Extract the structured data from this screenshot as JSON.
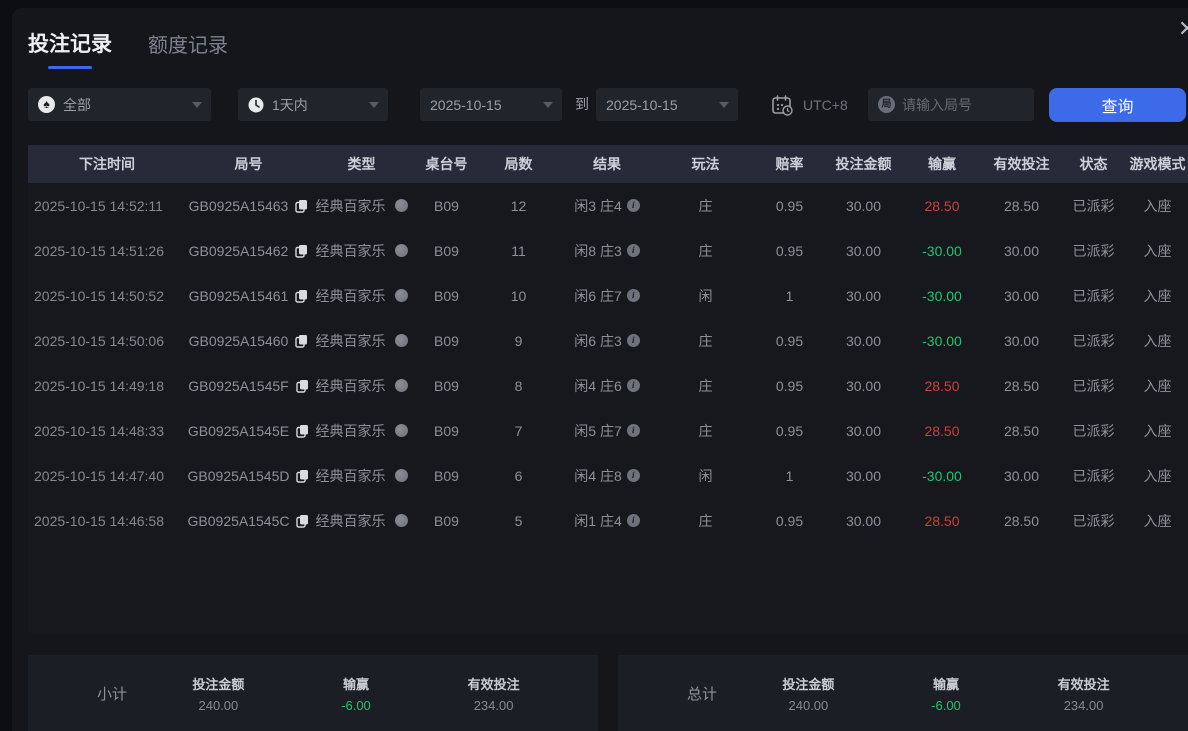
{
  "window": {
    "close_icon": "✕"
  },
  "tabs": [
    {
      "label": "投注记录",
      "active": true
    },
    {
      "label": "额度记录",
      "active": false
    }
  ],
  "filters": {
    "game_type": {
      "value": "全部",
      "icon": "spade-icon",
      "icon_char": "♠"
    },
    "time_range": {
      "value": "1天内",
      "icon": "clock-icon"
    },
    "date_from": "2025-10-15",
    "to_label": "到",
    "date_to": "2025-10-15",
    "timezone": "UTC+8",
    "round_placeholder": "请输入局号",
    "round_icon_char": "局",
    "query_button": "查询"
  },
  "table": {
    "columns": [
      "下注时间",
      "局号",
      "类型",
      "桌台号",
      "局数",
      "结果",
      "玩法",
      "赔率",
      "投注金额",
      "输赢",
      "有效投注",
      "状态",
      "游戏模式"
    ],
    "rows": [
      {
        "time": "2025-10-15 14:52:11",
        "round_id": "GB0925A15463",
        "type": "经典百家乐",
        "table_no": "B09",
        "round": "12",
        "result": "闲3 庄4",
        "play": "庄",
        "odds": "0.95",
        "bet": "30.00",
        "win": "28.50",
        "valid": "28.50",
        "status": "已派彩",
        "mode": "入座"
      },
      {
        "time": "2025-10-15 14:51:26",
        "round_id": "GB0925A15462",
        "type": "经典百家乐",
        "table_no": "B09",
        "round": "11",
        "result": "闲8 庄3",
        "play": "庄",
        "odds": "0.95",
        "bet": "30.00",
        "win": "-30.00",
        "valid": "30.00",
        "status": "已派彩",
        "mode": "入座"
      },
      {
        "time": "2025-10-15 14:50:52",
        "round_id": "GB0925A15461",
        "type": "经典百家乐",
        "table_no": "B09",
        "round": "10",
        "result": "闲6 庄7",
        "play": "闲",
        "odds": "1",
        "bet": "30.00",
        "win": "-30.00",
        "valid": "30.00",
        "status": "已派彩",
        "mode": "入座"
      },
      {
        "time": "2025-10-15 14:50:06",
        "round_id": "GB0925A15460",
        "type": "经典百家乐",
        "table_no": "B09",
        "round": "9",
        "result": "闲6 庄3",
        "play": "庄",
        "odds": "0.95",
        "bet": "30.00",
        "win": "-30.00",
        "valid": "30.00",
        "status": "已派彩",
        "mode": "入座"
      },
      {
        "time": "2025-10-15 14:49:18",
        "round_id": "GB0925A1545F",
        "type": "经典百家乐",
        "table_no": "B09",
        "round": "8",
        "result": "闲4 庄6",
        "play": "庄",
        "odds": "0.95",
        "bet": "30.00",
        "win": "28.50",
        "valid": "28.50",
        "status": "已派彩",
        "mode": "入座"
      },
      {
        "time": "2025-10-15 14:48:33",
        "round_id": "GB0925A1545E",
        "type": "经典百家乐",
        "table_no": "B09",
        "round": "7",
        "result": "闲5 庄7",
        "play": "庄",
        "odds": "0.95",
        "bet": "30.00",
        "win": "28.50",
        "valid": "28.50",
        "status": "已派彩",
        "mode": "入座"
      },
      {
        "time": "2025-10-15 14:47:40",
        "round_id": "GB0925A1545D",
        "type": "经典百家乐",
        "table_no": "B09",
        "round": "6",
        "result": "闲4 庄8",
        "play": "闲",
        "odds": "1",
        "bet": "30.00",
        "win": "-30.00",
        "valid": "30.00",
        "status": "已派彩",
        "mode": "入座"
      },
      {
        "time": "2025-10-15 14:46:58",
        "round_id": "GB0925A1545C",
        "type": "经典百家乐",
        "table_no": "B09",
        "round": "5",
        "result": "闲1 庄4",
        "play": "庄",
        "odds": "0.95",
        "bet": "30.00",
        "win": "28.50",
        "valid": "28.50",
        "status": "已派彩",
        "mode": "入座"
      }
    ]
  },
  "summary": {
    "subtotal": {
      "label": "小计",
      "items": [
        {
          "label": "投注金额",
          "value": "240.00"
        },
        {
          "label": "输赢",
          "value": "-6.00"
        },
        {
          "label": "有效投注",
          "value": "234.00"
        }
      ]
    },
    "total": {
      "label": "总计",
      "items": [
        {
          "label": "投注金额",
          "value": "240.00"
        },
        {
          "label": "输赢",
          "value": "-6.00"
        },
        {
          "label": "有效投注",
          "value": "234.00"
        }
      ]
    }
  },
  "colors": {
    "accent": "#3d6ae8",
    "win_red": "#cb4038",
    "loss_green": "#1ec56e"
  }
}
